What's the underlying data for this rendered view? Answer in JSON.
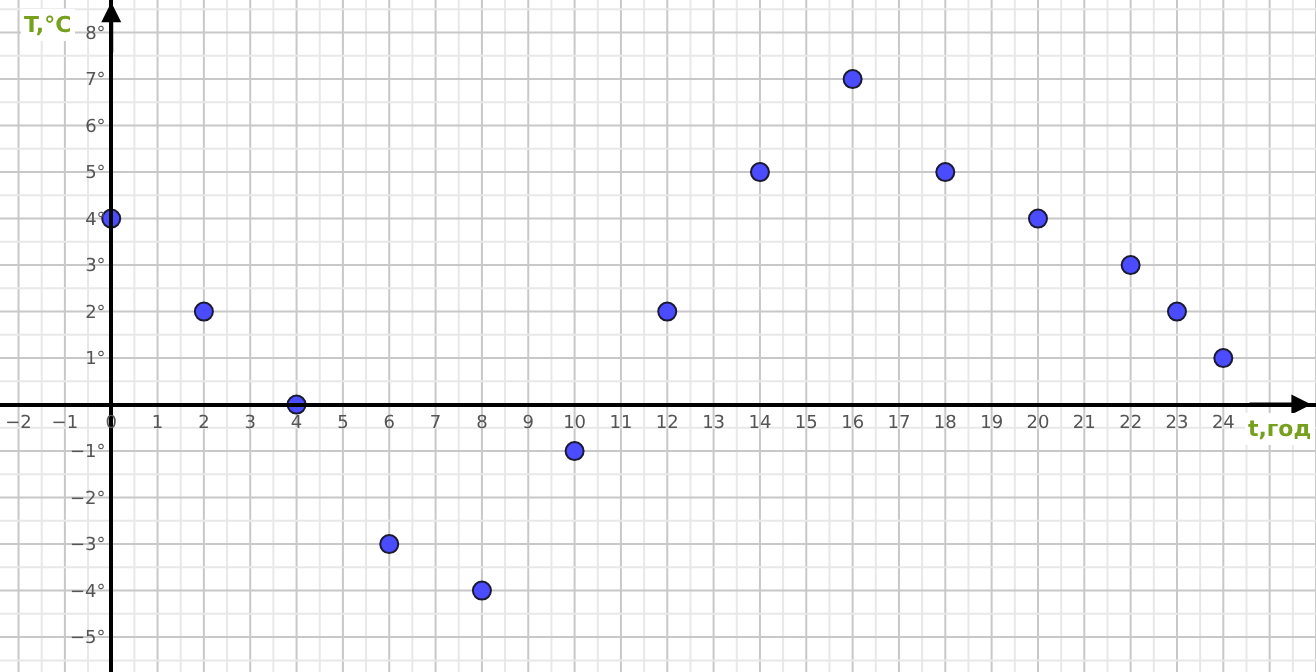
{
  "chart_data": {
    "type": "scatter",
    "xlabel": "t,год",
    "ylabel": "T,°C",
    "x": [
      0,
      2,
      4,
      6,
      8,
      10,
      12,
      14,
      16,
      18,
      20,
      22,
      23,
      24
    ],
    "series": [
      {
        "color": "#4b4bff",
        "values": [
          4,
          2,
          0,
          -3,
          -4,
          -1,
          2,
          5,
          7,
          5,
          4,
          3,
          2,
          1
        ]
      }
    ],
    "xlim": [
      -2.4,
      26
    ],
    "ylim": [
      -5.75,
      8.7
    ],
    "xticks": [
      -2,
      -1,
      0,
      1,
      2,
      3,
      4,
      5,
      6,
      7,
      8,
      9,
      10,
      11,
      12,
      13,
      14,
      15,
      16,
      17,
      18,
      19,
      20,
      21,
      22,
      23,
      24
    ],
    "yticks": [
      {
        "value": -5,
        "label": "−5°"
      },
      {
        "value": -4,
        "label": "−4°"
      },
      {
        "value": -3,
        "label": "−3°"
      },
      {
        "value": -2,
        "label": "−2°"
      },
      {
        "value": -1,
        "label": "−1°"
      },
      {
        "value": 1,
        "label": "1°"
      },
      {
        "value": 2,
        "label": "2°"
      },
      {
        "value": 3,
        "label": "3°"
      },
      {
        "value": 4,
        "label": "4°"
      },
      {
        "value": 5,
        "label": "5°"
      },
      {
        "value": 6,
        "label": "6°"
      },
      {
        "value": 7,
        "label": "7°"
      },
      {
        "value": 8,
        "label": "8°"
      }
    ],
    "grid": true,
    "marker": "circle",
    "legend": false
  }
}
